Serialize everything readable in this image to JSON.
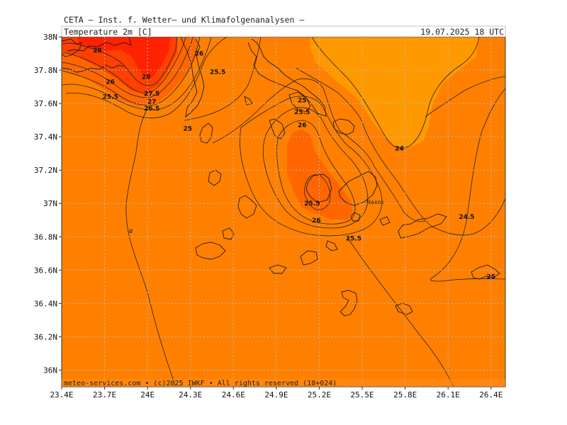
{
  "header": {
    "provider": "CETA — Inst. f. Wetter— und Klimafolgenanalysen —",
    "parameter": "Temperature 2m [C]",
    "datetime": "19.07.2025 18 UTC"
  },
  "map": {
    "lat_ticks": [
      "38N",
      "37.8N",
      "37.6N",
      "37.4N",
      "37.2N",
      "37N",
      "36.8N",
      "36.6N",
      "36.4N",
      "36.2N",
      "36N"
    ],
    "lon_ticks": [
      "23.4E",
      "23.7E",
      "24E",
      "24.3E",
      "24.6E",
      "24.9E",
      "25.2E",
      "25.5E",
      "25.8E",
      "26.1E",
      "26.4E"
    ],
    "extent": {
      "lon": [
        23.4,
        26.5
      ],
      "lat": [
        35.9,
        38.0
      ]
    },
    "colors": {
      "t24": "#ff9900",
      "t245": "#ff8000",
      "t26": "#ff6600",
      "t27": "#ff4000",
      "t28": "#ff2200"
    },
    "contour_labels": [
      {
        "text": "28",
        "lon": 23.65,
        "lat": 37.92
      },
      {
        "text": "28",
        "lon": 23.99,
        "lat": 37.76
      },
      {
        "text": "26",
        "lon": 24.36,
        "lat": 37.9
      },
      {
        "text": "25.5",
        "lon": 24.49,
        "lat": 37.79
      },
      {
        "text": "26",
        "lon": 23.74,
        "lat": 37.73
      },
      {
        "text": "27.5",
        "lon": 24.03,
        "lat": 37.66
      },
      {
        "text": "27",
        "lon": 24.03,
        "lat": 37.61
      },
      {
        "text": "26.5",
        "lon": 24.03,
        "lat": 37.57
      },
      {
        "text": "25.5",
        "lon": 23.74,
        "lat": 37.64
      },
      {
        "text": "25",
        "lon": 24.28,
        "lat": 37.45
      },
      {
        "text": "25",
        "lon": 25.08,
        "lat": 37.62
      },
      {
        "text": "25.5",
        "lon": 25.08,
        "lat": 37.55
      },
      {
        "text": "26",
        "lon": 25.08,
        "lat": 37.47
      },
      {
        "text": "25.5",
        "lon": 25.15,
        "lat": 37.0
      },
      {
        "text": "26",
        "lon": 25.18,
        "lat": 36.9
      },
      {
        "text": "25.5",
        "lon": 25.44,
        "lat": 36.79
      },
      {
        "text": "24",
        "lon": 25.76,
        "lat": 37.33
      },
      {
        "text": "24.5",
        "lon": 26.23,
        "lat": 36.92
      },
      {
        "text": "25",
        "lon": 26.4,
        "lat": 36.56
      }
    ],
    "place_labels": [
      {
        "text": "Naxos",
        "lon": 25.59,
        "lat": 37.01
      }
    ]
  },
  "footer": {
    "credit": "meteo-services.com • (c)2025 IWKF • All rights reserved (18+024)"
  }
}
